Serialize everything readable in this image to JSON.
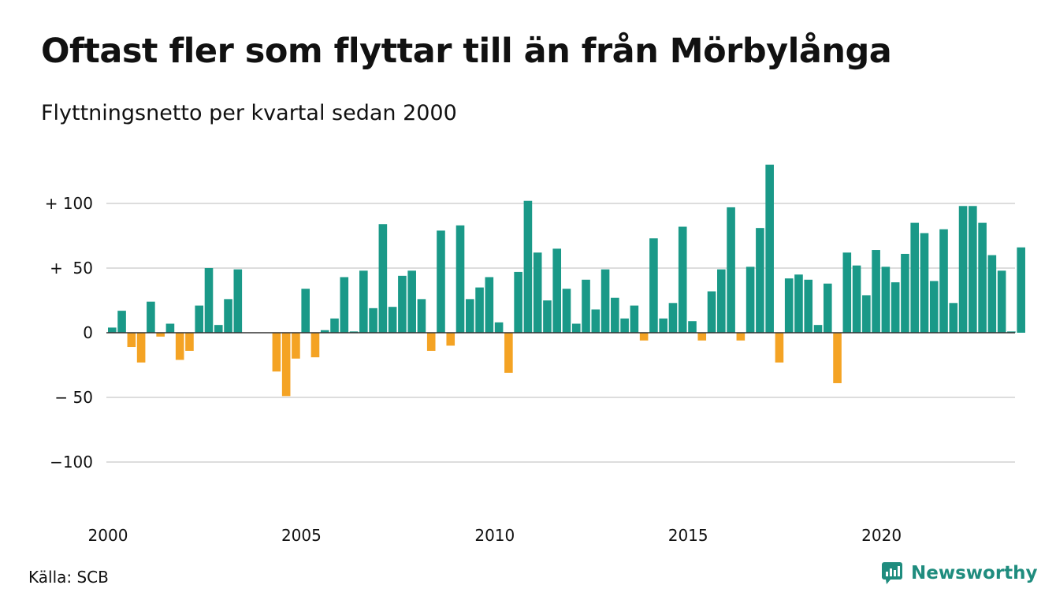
{
  "header": {
    "title": "Oftast fler som flyttar till än från Mörbylånga",
    "subtitle": "Flyttningsnetto per kvartal sedan 2000"
  },
  "footer": {
    "source": "Källa: SCB",
    "brand": "Newsworthy",
    "brand_icon": "newsworthy-logo-icon"
  },
  "colors": {
    "positive": "#1a9988",
    "negative": "#f4a324",
    "grid": "#dddddd",
    "zero_line": "#333333",
    "brand": "#1f8c7e"
  },
  "chart_data": {
    "type": "bar",
    "title": "Oftast fler som flyttar till än från Mörbylånga",
    "subtitle": "Flyttningsnetto per kvartal sedan 2000",
    "ylim": [
      -140,
      135
    ],
    "y_ticks": [
      100,
      50,
      0,
      -50,
      -100
    ],
    "y_tick_labels": [
      "+ 100",
      "+  50",
      "0",
      "− 50",
      "−100"
    ],
    "x_tick_labels": [
      "2000",
      "2005",
      "2010",
      "2015",
      "2020"
    ],
    "grid": true,
    "start": "2000 Q1",
    "values": [
      4,
      17,
      -11,
      -23,
      24,
      -3,
      7,
      -21,
      -14,
      21,
      50,
      6,
      26,
      49,
      0,
      0,
      0,
      -30,
      -49,
      -20,
      34,
      -19,
      2,
      11,
      43,
      1,
      48,
      19,
      84,
      20,
      44,
      48,
      26,
      -14,
      79,
      -10,
      83,
      26,
      35,
      43,
      8,
      -31,
      47,
      102,
      62,
      25,
      65,
      34,
      7,
      41,
      18,
      49,
      27,
      11,
      21,
      -6,
      73,
      11,
      23,
      82,
      9,
      -6,
      32,
      49,
      97,
      -6,
      51,
      81,
      130,
      -23,
      42,
      45,
      41,
      6,
      38,
      -39,
      62,
      52,
      29,
      64,
      51,
      39,
      61,
      85,
      77,
      40,
      80,
      23,
      98,
      98,
      85,
      60,
      48,
      1,
      66
    ]
  }
}
